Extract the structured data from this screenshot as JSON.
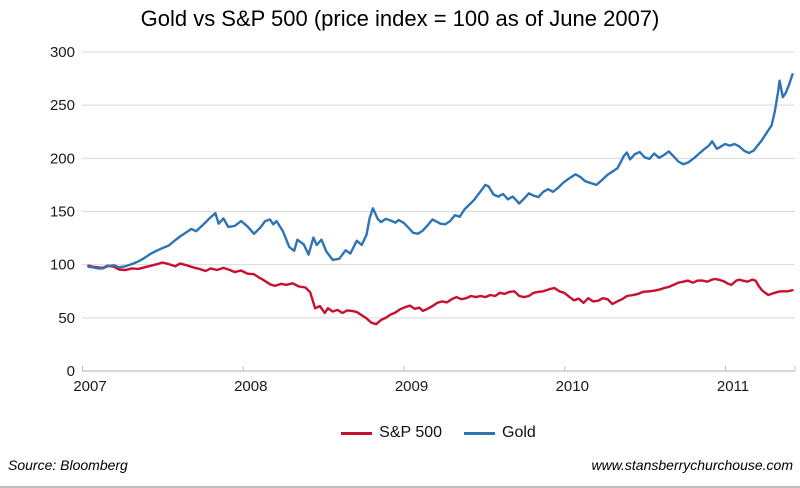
{
  "chart_data": {
    "type": "line",
    "title": "Gold vs S&P 500 (price index = 100 as of June 2007)",
    "x_axis": {
      "tick_labels": [
        "2007",
        "2008",
        "2009",
        "2010",
        "2011"
      ],
      "min": 2006.99,
      "max": 2011.38
    },
    "y_axis": {
      "tick_labels": [
        0,
        50,
        100,
        150,
        200,
        250,
        300
      ],
      "min": 0,
      "max": 300
    },
    "grid": "horizontal-only",
    "legend_position": "bottom-center",
    "series": [
      {
        "name": "S&P 500",
        "color": "#C8102E",
        "points": [
          [
            2006.99,
            99
          ],
          [
            2007.02,
            98
          ],
          [
            2007.05,
            97.5
          ],
          [
            2007.08,
            97
          ],
          [
            2007.11,
            99
          ],
          [
            2007.15,
            98
          ],
          [
            2007.18,
            95.5
          ],
          [
            2007.22,
            95
          ],
          [
            2007.26,
            96.5
          ],
          [
            2007.3,
            96
          ],
          [
            2007.34,
            97.5
          ],
          [
            2007.38,
            99
          ],
          [
            2007.42,
            100.5
          ],
          [
            2007.45,
            102
          ],
          [
            2007.49,
            100.5
          ],
          [
            2007.53,
            98.5
          ],
          [
            2007.56,
            101
          ],
          [
            2007.6,
            99.5
          ],
          [
            2007.64,
            97.5
          ],
          [
            2007.68,
            96
          ],
          [
            2007.72,
            94
          ],
          [
            2007.75,
            96.5
          ],
          [
            2007.79,
            95
          ],
          [
            2007.83,
            97
          ],
          [
            2007.87,
            95
          ],
          [
            2007.9,
            93
          ],
          [
            2007.94,
            94.5
          ],
          [
            2007.98,
            91.5
          ],
          [
            2008.02,
            91
          ],
          [
            2008.05,
            88
          ],
          [
            2008.08,
            85.5
          ],
          [
            2008.12,
            81.5
          ],
          [
            2008.15,
            80
          ],
          [
            2008.19,
            82
          ],
          [
            2008.22,
            81
          ],
          [
            2008.26,
            82.5
          ],
          [
            2008.3,
            79.5
          ],
          [
            2008.34,
            78.5
          ],
          [
            2008.37,
            74
          ],
          [
            2008.4,
            59
          ],
          [
            2008.43,
            61
          ],
          [
            2008.46,
            54.5
          ],
          [
            2008.48,
            59
          ],
          [
            2008.51,
            56
          ],
          [
            2008.54,
            57.5
          ],
          [
            2008.57,
            54.5
          ],
          [
            2008.6,
            57
          ],
          [
            2008.63,
            56.5
          ],
          [
            2008.66,
            55.5
          ],
          [
            2008.7,
            51.5
          ],
          [
            2008.72,
            49.5
          ],
          [
            2008.75,
            45.5
          ],
          [
            2008.78,
            44
          ],
          [
            2008.81,
            48
          ],
          [
            2008.84,
            50
          ],
          [
            2008.87,
            53
          ],
          [
            2008.9,
            55
          ],
          [
            2008.93,
            58
          ],
          [
            2008.96,
            60
          ],
          [
            2008.99,
            61.5
          ],
          [
            2009.02,
            58.5
          ],
          [
            2009.05,
            59.5
          ],
          [
            2009.07,
            56.5
          ],
          [
            2009.1,
            58.5
          ],
          [
            2009.13,
            61
          ],
          [
            2009.16,
            64
          ],
          [
            2009.19,
            65.5
          ],
          [
            2009.22,
            64.5
          ],
          [
            2009.25,
            67.5
          ],
          [
            2009.28,
            69.5
          ],
          [
            2009.31,
            67.5
          ],
          [
            2009.34,
            68.5
          ],
          [
            2009.37,
            70.5
          ],
          [
            2009.4,
            69.5
          ],
          [
            2009.43,
            70.5
          ],
          [
            2009.46,
            69.5
          ],
          [
            2009.49,
            71.5
          ],
          [
            2009.52,
            70.5
          ],
          [
            2009.55,
            73.5
          ],
          [
            2009.58,
            72.5
          ],
          [
            2009.61,
            74.5
          ],
          [
            2009.64,
            75
          ],
          [
            2009.67,
            70.5
          ],
          [
            2009.7,
            69.5
          ],
          [
            2009.73,
            70.5
          ],
          [
            2009.76,
            73.5
          ],
          [
            2009.79,
            74.5
          ],
          [
            2009.82,
            75
          ],
          [
            2009.86,
            77
          ],
          [
            2009.89,
            78
          ],
          [
            2009.92,
            75
          ],
          [
            2009.95,
            73.5
          ],
          [
            2009.98,
            70
          ],
          [
            2010.01,
            66.5
          ],
          [
            2010.04,
            68
          ],
          [
            2010.07,
            64
          ],
          [
            2010.1,
            68.5
          ],
          [
            2010.13,
            65.5
          ],
          [
            2010.16,
            66
          ],
          [
            2010.19,
            68.5
          ],
          [
            2010.22,
            67.5
          ],
          [
            2010.25,
            63
          ],
          [
            2010.28,
            65.5
          ],
          [
            2010.31,
            67.5
          ],
          [
            2010.34,
            70.5
          ],
          [
            2010.38,
            71.5
          ],
          [
            2010.41,
            72.5
          ],
          [
            2010.44,
            74.5
          ],
          [
            2010.48,
            75
          ],
          [
            2010.51,
            75.5
          ],
          [
            2010.54,
            76.5
          ],
          [
            2010.57,
            78
          ],
          [
            2010.6,
            79
          ],
          [
            2010.63,
            81
          ],
          [
            2010.66,
            83
          ],
          [
            2010.69,
            84
          ],
          [
            2010.72,
            85
          ],
          [
            2010.75,
            83
          ],
          [
            2010.78,
            85
          ],
          [
            2010.81,
            85
          ],
          [
            2010.84,
            84
          ],
          [
            2010.87,
            86
          ],
          [
            2010.89,
            86.5
          ],
          [
            2010.92,
            85.5
          ],
          [
            2010.94,
            84.5
          ],
          [
            2010.97,
            82
          ],
          [
            2010.99,
            81
          ],
          [
            2011.02,
            85
          ],
          [
            2011.04,
            86
          ],
          [
            2011.06,
            85
          ],
          [
            2011.09,
            84
          ],
          [
            2011.12,
            86
          ],
          [
            2011.14,
            85
          ],
          [
            2011.16,
            80
          ],
          [
            2011.18,
            76
          ],
          [
            2011.2,
            73.5
          ],
          [
            2011.22,
            71.5
          ],
          [
            2011.24,
            72.5
          ],
          [
            2011.26,
            73.5
          ],
          [
            2011.28,
            74.5
          ],
          [
            2011.3,
            75
          ],
          [
            2011.34,
            75
          ],
          [
            2011.37,
            76
          ]
        ]
      },
      {
        "name": "Gold",
        "color": "#2E74B5",
        "points": [
          [
            2006.99,
            98
          ],
          [
            2007.02,
            97.5
          ],
          [
            2007.05,
            96.5
          ],
          [
            2007.08,
            96.5
          ],
          [
            2007.11,
            98.5
          ],
          [
            2007.15,
            99.5
          ],
          [
            2007.18,
            97.5
          ],
          [
            2007.22,
            98.5
          ],
          [
            2007.26,
            100.5
          ],
          [
            2007.3,
            103
          ],
          [
            2007.34,
            106.5
          ],
          [
            2007.38,
            110.5
          ],
          [
            2007.42,
            113.5
          ],
          [
            2007.45,
            115.5
          ],
          [
            2007.49,
            118
          ],
          [
            2007.53,
            123
          ],
          [
            2007.56,
            126.5
          ],
          [
            2007.6,
            130.5
          ],
          [
            2007.63,
            133.5
          ],
          [
            2007.66,
            131.5
          ],
          [
            2007.7,
            137
          ],
          [
            2007.74,
            143
          ],
          [
            2007.78,
            148.5
          ],
          [
            2007.8,
            138.5
          ],
          [
            2007.83,
            143.5
          ],
          [
            2007.86,
            135.5
          ],
          [
            2007.9,
            136.5
          ],
          [
            2007.94,
            141
          ],
          [
            2007.98,
            136
          ],
          [
            2008.02,
            129
          ],
          [
            2008.06,
            135
          ],
          [
            2008.09,
            141
          ],
          [
            2008.12,
            142.5
          ],
          [
            2008.14,
            138
          ],
          [
            2008.16,
            141
          ],
          [
            2008.2,
            131.5
          ],
          [
            2008.24,
            116.5
          ],
          [
            2008.27,
            113
          ],
          [
            2008.29,
            123.5
          ],
          [
            2008.33,
            119
          ],
          [
            2008.36,
            109.5
          ],
          [
            2008.39,
            125.5
          ],
          [
            2008.41,
            118.5
          ],
          [
            2008.44,
            123.5
          ],
          [
            2008.47,
            112.5
          ],
          [
            2008.51,
            104.5
          ],
          [
            2008.55,
            105.5
          ],
          [
            2008.59,
            113.5
          ],
          [
            2008.62,
            110.5
          ],
          [
            2008.66,
            122.5
          ],
          [
            2008.69,
            118.5
          ],
          [
            2008.72,
            128
          ],
          [
            2008.74,
            144
          ],
          [
            2008.76,
            153
          ],
          [
            2008.79,
            143
          ],
          [
            2008.81,
            140
          ],
          [
            2008.84,
            143
          ],
          [
            2008.87,
            141.5
          ],
          [
            2008.9,
            139.5
          ],
          [
            2008.92,
            142
          ],
          [
            2008.95,
            139.5
          ],
          [
            2008.98,
            135
          ],
          [
            2009.01,
            130
          ],
          [
            2009.04,
            129
          ],
          [
            2009.07,
            132
          ],
          [
            2009.1,
            137
          ],
          [
            2009.13,
            142.5
          ],
          [
            2009.15,
            141
          ],
          [
            2009.18,
            138.5
          ],
          [
            2009.21,
            138
          ],
          [
            2009.24,
            141
          ],
          [
            2009.27,
            146.5
          ],
          [
            2009.3,
            145
          ],
          [
            2009.33,
            152
          ],
          [
            2009.36,
            156.5
          ],
          [
            2009.39,
            161
          ],
          [
            2009.43,
            169
          ],
          [
            2009.46,
            175
          ],
          [
            2009.48,
            173.5
          ],
          [
            2009.51,
            166
          ],
          [
            2009.54,
            164
          ],
          [
            2009.57,
            166.5
          ],
          [
            2009.6,
            161.5
          ],
          [
            2009.63,
            164
          ],
          [
            2009.67,
            157.5
          ],
          [
            2009.7,
            162
          ],
          [
            2009.73,
            167
          ],
          [
            2009.76,
            165
          ],
          [
            2009.79,
            163.5
          ],
          [
            2009.82,
            168.5
          ],
          [
            2009.85,
            171
          ],
          [
            2009.88,
            168.5
          ],
          [
            2009.91,
            172
          ],
          [
            2009.94,
            176.5
          ],
          [
            2009.97,
            180
          ],
          [
            2010.02,
            185
          ],
          [
            2010.05,
            182.5
          ],
          [
            2010.08,
            178.5
          ],
          [
            2010.12,
            176.5
          ],
          [
            2010.15,
            175
          ],
          [
            2010.18,
            179
          ],
          [
            2010.22,
            184.5
          ],
          [
            2010.25,
            187.5
          ],
          [
            2010.28,
            190.5
          ],
          [
            2010.3,
            196
          ],
          [
            2010.32,
            202
          ],
          [
            2010.34,
            205.5
          ],
          [
            2010.36,
            199
          ],
          [
            2010.39,
            204
          ],
          [
            2010.42,
            206
          ],
          [
            2010.45,
            201
          ],
          [
            2010.48,
            199.5
          ],
          [
            2010.51,
            204.5
          ],
          [
            2010.54,
            200.5
          ],
          [
            2010.57,
            203
          ],
          [
            2010.6,
            206.5
          ],
          [
            2010.63,
            202
          ],
          [
            2010.66,
            197
          ],
          [
            2010.69,
            194.5
          ],
          [
            2010.72,
            196
          ],
          [
            2010.76,
            200.5
          ],
          [
            2010.79,
            204.5
          ],
          [
            2010.82,
            208.5
          ],
          [
            2010.85,
            212
          ],
          [
            2010.87,
            216
          ],
          [
            2010.9,
            209
          ],
          [
            2010.93,
            211.5
          ],
          [
            2010.95,
            213.5
          ],
          [
            2010.98,
            212
          ],
          [
            2011.01,
            213.5
          ],
          [
            2011.04,
            211
          ],
          [
            2011.07,
            207
          ],
          [
            2011.1,
            205
          ],
          [
            2011.13,
            207.5
          ],
          [
            2011.15,
            211.5
          ],
          [
            2011.18,
            217
          ],
          [
            2011.2,
            222
          ],
          [
            2011.22,
            226.5
          ],
          [
            2011.24,
            231
          ],
          [
            2011.26,
            244
          ],
          [
            2011.28,
            262
          ],
          [
            2011.29,
            273
          ],
          [
            2011.31,
            257.5
          ],
          [
            2011.33,
            262
          ],
          [
            2011.35,
            270
          ],
          [
            2011.37,
            279
          ]
        ]
      }
    ]
  },
  "footer": {
    "source": "Source: Bloomberg",
    "website": "www.stansberrychurchouse.com"
  },
  "colors": {
    "grid": "#D9D9D9",
    "axis": "#BFBFBF",
    "tick": "#BFBFBF",
    "label_text": "#1A1A1A"
  }
}
